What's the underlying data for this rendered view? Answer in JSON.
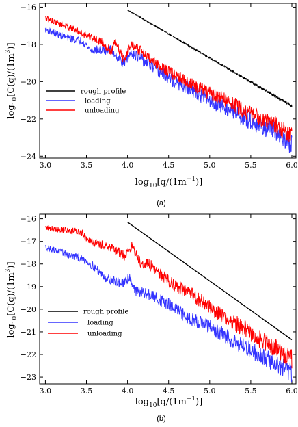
{
  "chart_data": [
    {
      "type": "line",
      "panel_label": "(a)",
      "xlabel": "log10[q/(1m-1)]",
      "ylabel": "log10[C(q)/(1m3)]",
      "xlim": [
        2.93,
        6.05
      ],
      "ylim": [
        -24.1,
        -15.8
      ],
      "xticks": [
        3.0,
        3.5,
        4.0,
        4.5,
        5.0,
        5.5,
        6.0
      ],
      "yticks": [
        -16,
        -18,
        -20,
        -22,
        -24
      ],
      "legend": [
        "rough profile",
        "loading",
        "unloading"
      ],
      "legend_position": "left",
      "series": [
        {
          "name": "rough profile",
          "color": "#000000",
          "noise": 0.04,
          "points": [
            [
              4.0,
              -16.15
            ],
            [
              6.0,
              -21.3
            ]
          ]
        },
        {
          "name": "loading",
          "color": "#3333ff",
          "noise": 0.35,
          "points": [
            [
              3.0,
              -17.2
            ],
            [
              3.3,
              -17.7
            ],
            [
              3.45,
              -17.8
            ],
            [
              3.55,
              -18.3
            ],
            [
              3.8,
              -18.3
            ],
            [
              3.95,
              -19.0
            ],
            [
              4.05,
              -18.4
            ],
            [
              4.2,
              -18.9
            ],
            [
              4.4,
              -19.5
            ],
            [
              4.6,
              -20.1
            ],
            [
              4.8,
              -20.5
            ],
            [
              5.0,
              -21.0
            ],
            [
              5.2,
              -21.4
            ],
            [
              5.4,
              -21.9
            ],
            [
              5.6,
              -22.3
            ],
            [
              5.8,
              -22.7
            ],
            [
              6.0,
              -23.4
            ]
          ]
        },
        {
          "name": "unloading",
          "color": "#ff0000",
          "noise": 0.32,
          "points": [
            [
              3.0,
              -16.6
            ],
            [
              3.3,
              -17.1
            ],
            [
              3.5,
              -17.5
            ],
            [
              3.7,
              -17.9
            ],
            [
              3.8,
              -18.4
            ],
            [
              3.85,
              -17.9
            ],
            [
              3.95,
              -18.8
            ],
            [
              4.05,
              -18.0
            ],
            [
              4.2,
              -18.5
            ],
            [
              4.4,
              -19.2
            ],
            [
              4.6,
              -19.7
            ],
            [
              4.8,
              -20.2
            ],
            [
              5.0,
              -20.6
            ],
            [
              5.2,
              -21.0
            ],
            [
              5.4,
              -21.5
            ],
            [
              5.6,
              -21.9
            ],
            [
              5.8,
              -22.3
            ],
            [
              6.0,
              -22.9
            ]
          ]
        }
      ]
    },
    {
      "type": "line",
      "panel_label": "(b)",
      "xlabel": "log10[q/(1m-1)]",
      "ylabel": "log10[C(q)/(1m3)]",
      "xlim": [
        2.93,
        6.05
      ],
      "ylim": [
        -23.3,
        -15.8
      ],
      "xticks": [
        3.0,
        3.5,
        4.0,
        4.5,
        5.0,
        5.5,
        6.0
      ],
      "yticks": [
        -16,
        -17,
        -18,
        -19,
        -20,
        -21,
        -22,
        -23
      ],
      "legend": [
        "rough profile",
        "loading",
        "unloading"
      ],
      "legend_position": "left",
      "series": [
        {
          "name": "rough profile",
          "color": "#000000",
          "noise": 0.0,
          "points": [
            [
              4.0,
              -16.15
            ],
            [
              6.0,
              -21.35
            ]
          ]
        },
        {
          "name": "loading",
          "color": "#3333ff",
          "noise": 0.28,
          "points": [
            [
              3.0,
              -17.25
            ],
            [
              3.25,
              -17.55
            ],
            [
              3.5,
              -17.85
            ],
            [
              3.6,
              -18.15
            ],
            [
              3.75,
              -18.65
            ],
            [
              3.85,
              -18.75
            ],
            [
              3.95,
              -18.9
            ],
            [
              4.02,
              -18.55
            ],
            [
              4.1,
              -19.2
            ],
            [
              4.3,
              -19.4
            ],
            [
              4.5,
              -19.8
            ],
            [
              4.7,
              -20.3
            ],
            [
              4.9,
              -20.6
            ],
            [
              5.1,
              -21.0
            ],
            [
              5.3,
              -21.4
            ],
            [
              5.5,
              -21.8
            ],
            [
              5.7,
              -22.2
            ],
            [
              5.85,
              -22.5
            ],
            [
              6.0,
              -22.8
            ]
          ]
        },
        {
          "name": "unloading",
          "color": "#ff0000",
          "noise": 0.28,
          "points": [
            [
              3.0,
              -16.4
            ],
            [
              3.25,
              -16.5
            ],
            [
              3.45,
              -16.6
            ],
            [
              3.5,
              -16.85
            ],
            [
              3.65,
              -17.1
            ],
            [
              3.8,
              -17.3
            ],
            [
              3.9,
              -17.5
            ],
            [
              3.97,
              -17.65
            ],
            [
              4.05,
              -17.2
            ],
            [
              4.15,
              -17.9
            ],
            [
              4.3,
              -18.1
            ],
            [
              4.45,
              -18.6
            ],
            [
              4.6,
              -19.0
            ],
            [
              4.8,
              -19.4
            ],
            [
              5.0,
              -19.9
            ],
            [
              5.2,
              -20.4
            ],
            [
              5.4,
              -20.8
            ],
            [
              5.6,
              -21.3
            ],
            [
              5.8,
              -21.7
            ],
            [
              6.0,
              -22.2
            ]
          ]
        }
      ]
    }
  ]
}
